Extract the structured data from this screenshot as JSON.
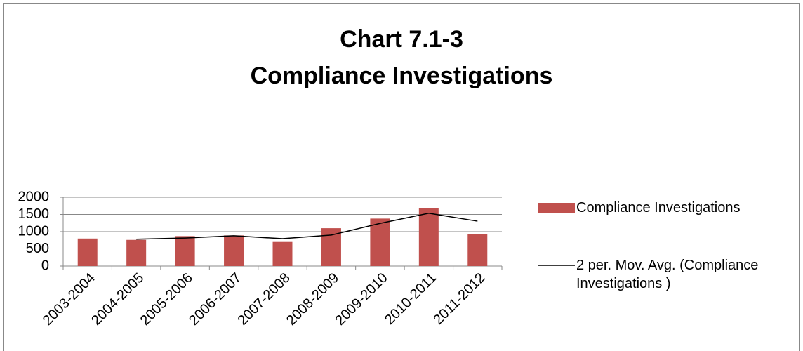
{
  "chart_data": {
    "type": "bar",
    "title": [
      "Chart 7.1-3",
      "Compliance Investigations"
    ],
    "categories": [
      "2003-2004",
      "2004-2005",
      "2005-2006",
      "2006-2007",
      "2007-2008",
      "2008-2009",
      "2009-2010",
      "2010-2011",
      "2011-2012"
    ],
    "series": [
      {
        "name": "Compliance Investigations",
        "type": "bar",
        "color": "#c0504d",
        "values": [
          800,
          760,
          870,
          890,
          700,
          1100,
          1380,
          1690,
          920
        ]
      },
      {
        "name": "2 per. Mov. Avg. (Compliance Investigations )",
        "type": "line",
        "color": "#000000",
        "values": [
          null,
          780,
          815,
          880,
          795,
          900,
          1240,
          1535,
          1305
        ]
      }
    ],
    "ylim": [
      0,
      2000
    ],
    "yticks": [
      0,
      500,
      1000,
      1500,
      2000
    ],
    "grid": true,
    "legend": "right"
  }
}
